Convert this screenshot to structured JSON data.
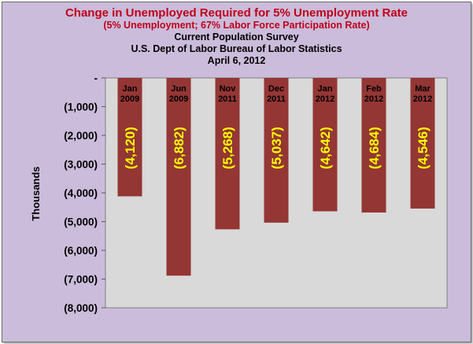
{
  "chart_data": {
    "type": "bar",
    "title": "Change in Unemployed Required for 5% Unemployment Rate",
    "subtitle": "(5% Unemployment; 67% Labor Force Participation Rate)",
    "source_lines": [
      "Current Population Survey",
      "U.S. Dept of Labor Bureau of Labor Statistics",
      "April 6, 2012"
    ],
    "ylabel": "Thousands",
    "xlabel": "",
    "ylim": [
      -8000,
      0
    ],
    "yticks": [
      0,
      -1000,
      -2000,
      -3000,
      -4000,
      -5000,
      -6000,
      -7000,
      -8000
    ],
    "ytick_labels": [
      "-",
      "(1,000)",
      "(2,000)",
      "(3,000)",
      "(4,000)",
      "(5,000)",
      "(6,000)",
      "(7,000)",
      "(8,000)"
    ],
    "categories": [
      [
        "Jan",
        "2009"
      ],
      [
        "Jun",
        "2009"
      ],
      [
        "Nov",
        "2011"
      ],
      [
        "Dec",
        "2011"
      ],
      [
        "Jan",
        "2012"
      ],
      [
        "Feb",
        "2012"
      ],
      [
        "Mar",
        "2012"
      ]
    ],
    "values": [
      -4120,
      -6882,
      -5268,
      -5037,
      -4642,
      -4684,
      -4546
    ],
    "data_labels": [
      "(4,120)",
      "(6,882)",
      "(5,268)",
      "(5,037)",
      "(4,642)",
      "(4,684)",
      "(4,546)"
    ],
    "bar_color": "#943634",
    "label_color": "#ffff00",
    "plot_background": "#d9d9d9",
    "chart_background": "#cbbcdb",
    "title_color": "#c0001a",
    "grid": false,
    "legend": "none"
  }
}
